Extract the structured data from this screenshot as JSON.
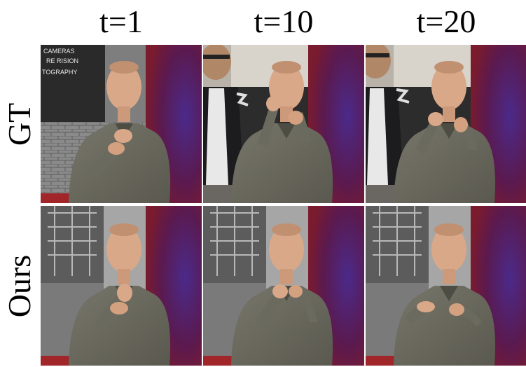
{
  "column_headers": [
    "t=1",
    "t=10",
    "t=20"
  ],
  "row_labels": [
    "GT",
    "Ours"
  ],
  "frames": [
    {
      "row": "GT",
      "column": "t=1",
      "background": "street-storefront",
      "sign_text": [
        "CAMERAS",
        "RE RISION",
        "TOGRAPHY"
      ]
    },
    {
      "row": "GT",
      "column": "t=10",
      "background": "car-interior-man"
    },
    {
      "row": "GT",
      "column": "t=20",
      "background": "car-interior-man"
    },
    {
      "row": "Ours",
      "column": "t=1",
      "background": "ruined-building"
    },
    {
      "row": "Ours",
      "column": "t=10",
      "background": "ruined-building"
    },
    {
      "row": "Ours",
      "column": "t=20",
      "background": "ruined-building"
    }
  ],
  "colors": {
    "sweater": "#6b6a5e",
    "skin": "#d9a888",
    "purple_bg": "#4a1850",
    "red_bg": "#8a1f24"
  }
}
